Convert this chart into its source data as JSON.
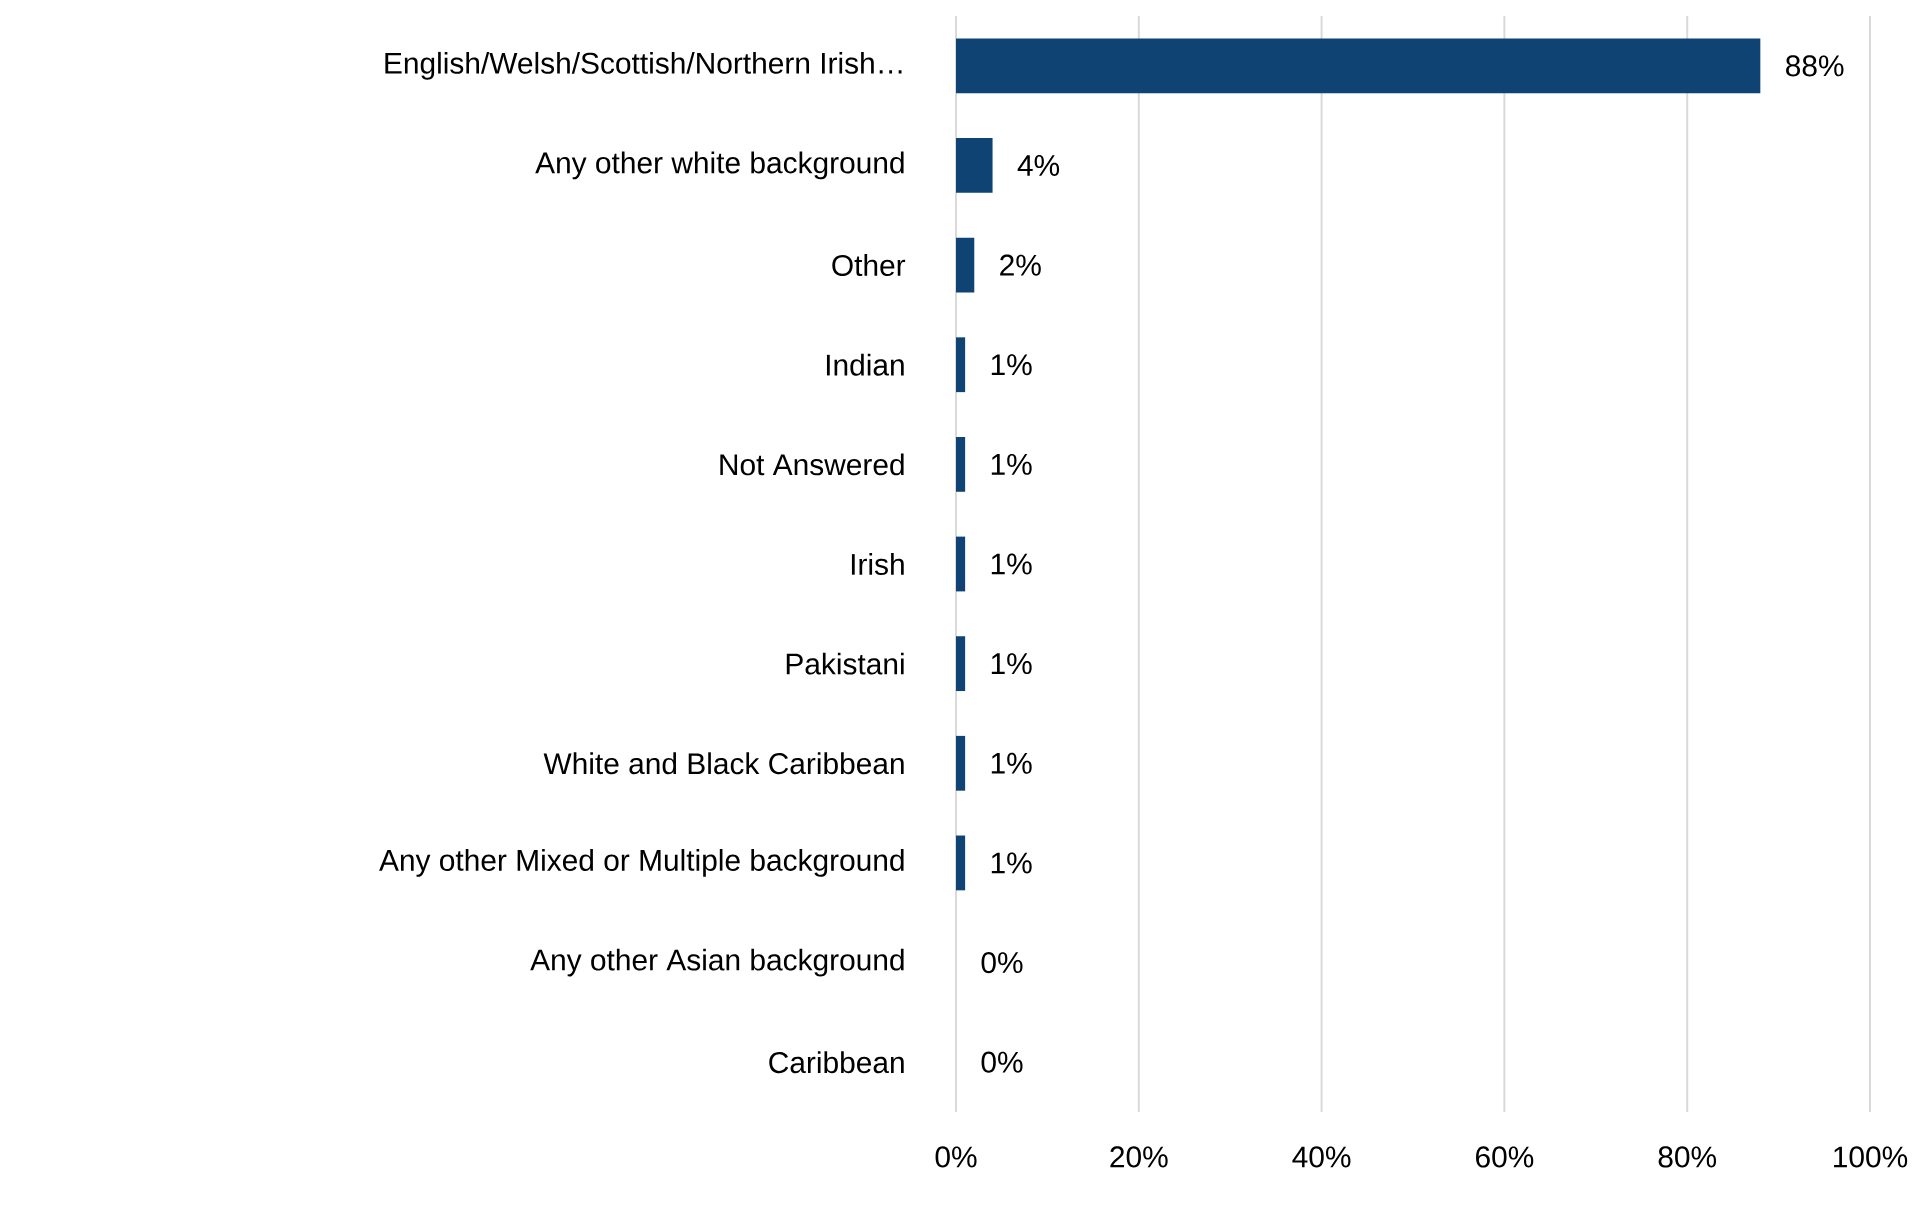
{
  "chart_data": {
    "type": "bar",
    "orientation": "horizontal",
    "categories": [
      "English/Welsh/Scottish/Northern Irish…",
      "Any other white background",
      "Other",
      "Indian",
      "Not Answered",
      "Irish",
      "Pakistani",
      "White and Black Caribbean",
      "Any other Mixed or Multiple background",
      "Any other Asian background",
      "Caribbean"
    ],
    "values": [
      88,
      4,
      2,
      1,
      1,
      1,
      1,
      1,
      1,
      0,
      0
    ],
    "value_labels": [
      "88%",
      "4%",
      "2%",
      "1%",
      "1%",
      "1%",
      "1%",
      "1%",
      "1%",
      "0%",
      "0%"
    ],
    "color": "#0f4373",
    "xlim": [
      0,
      100
    ],
    "xticks": [
      {
        "value": 0,
        "label": "0%"
      },
      {
        "value": 20,
        "label": "20%"
      },
      {
        "value": 40,
        "label": "40%"
      },
      {
        "value": 60,
        "label": "60%"
      },
      {
        "value": 80,
        "label": "80%"
      },
      {
        "value": 100,
        "label": "100%"
      }
    ],
    "grid": "x"
  }
}
